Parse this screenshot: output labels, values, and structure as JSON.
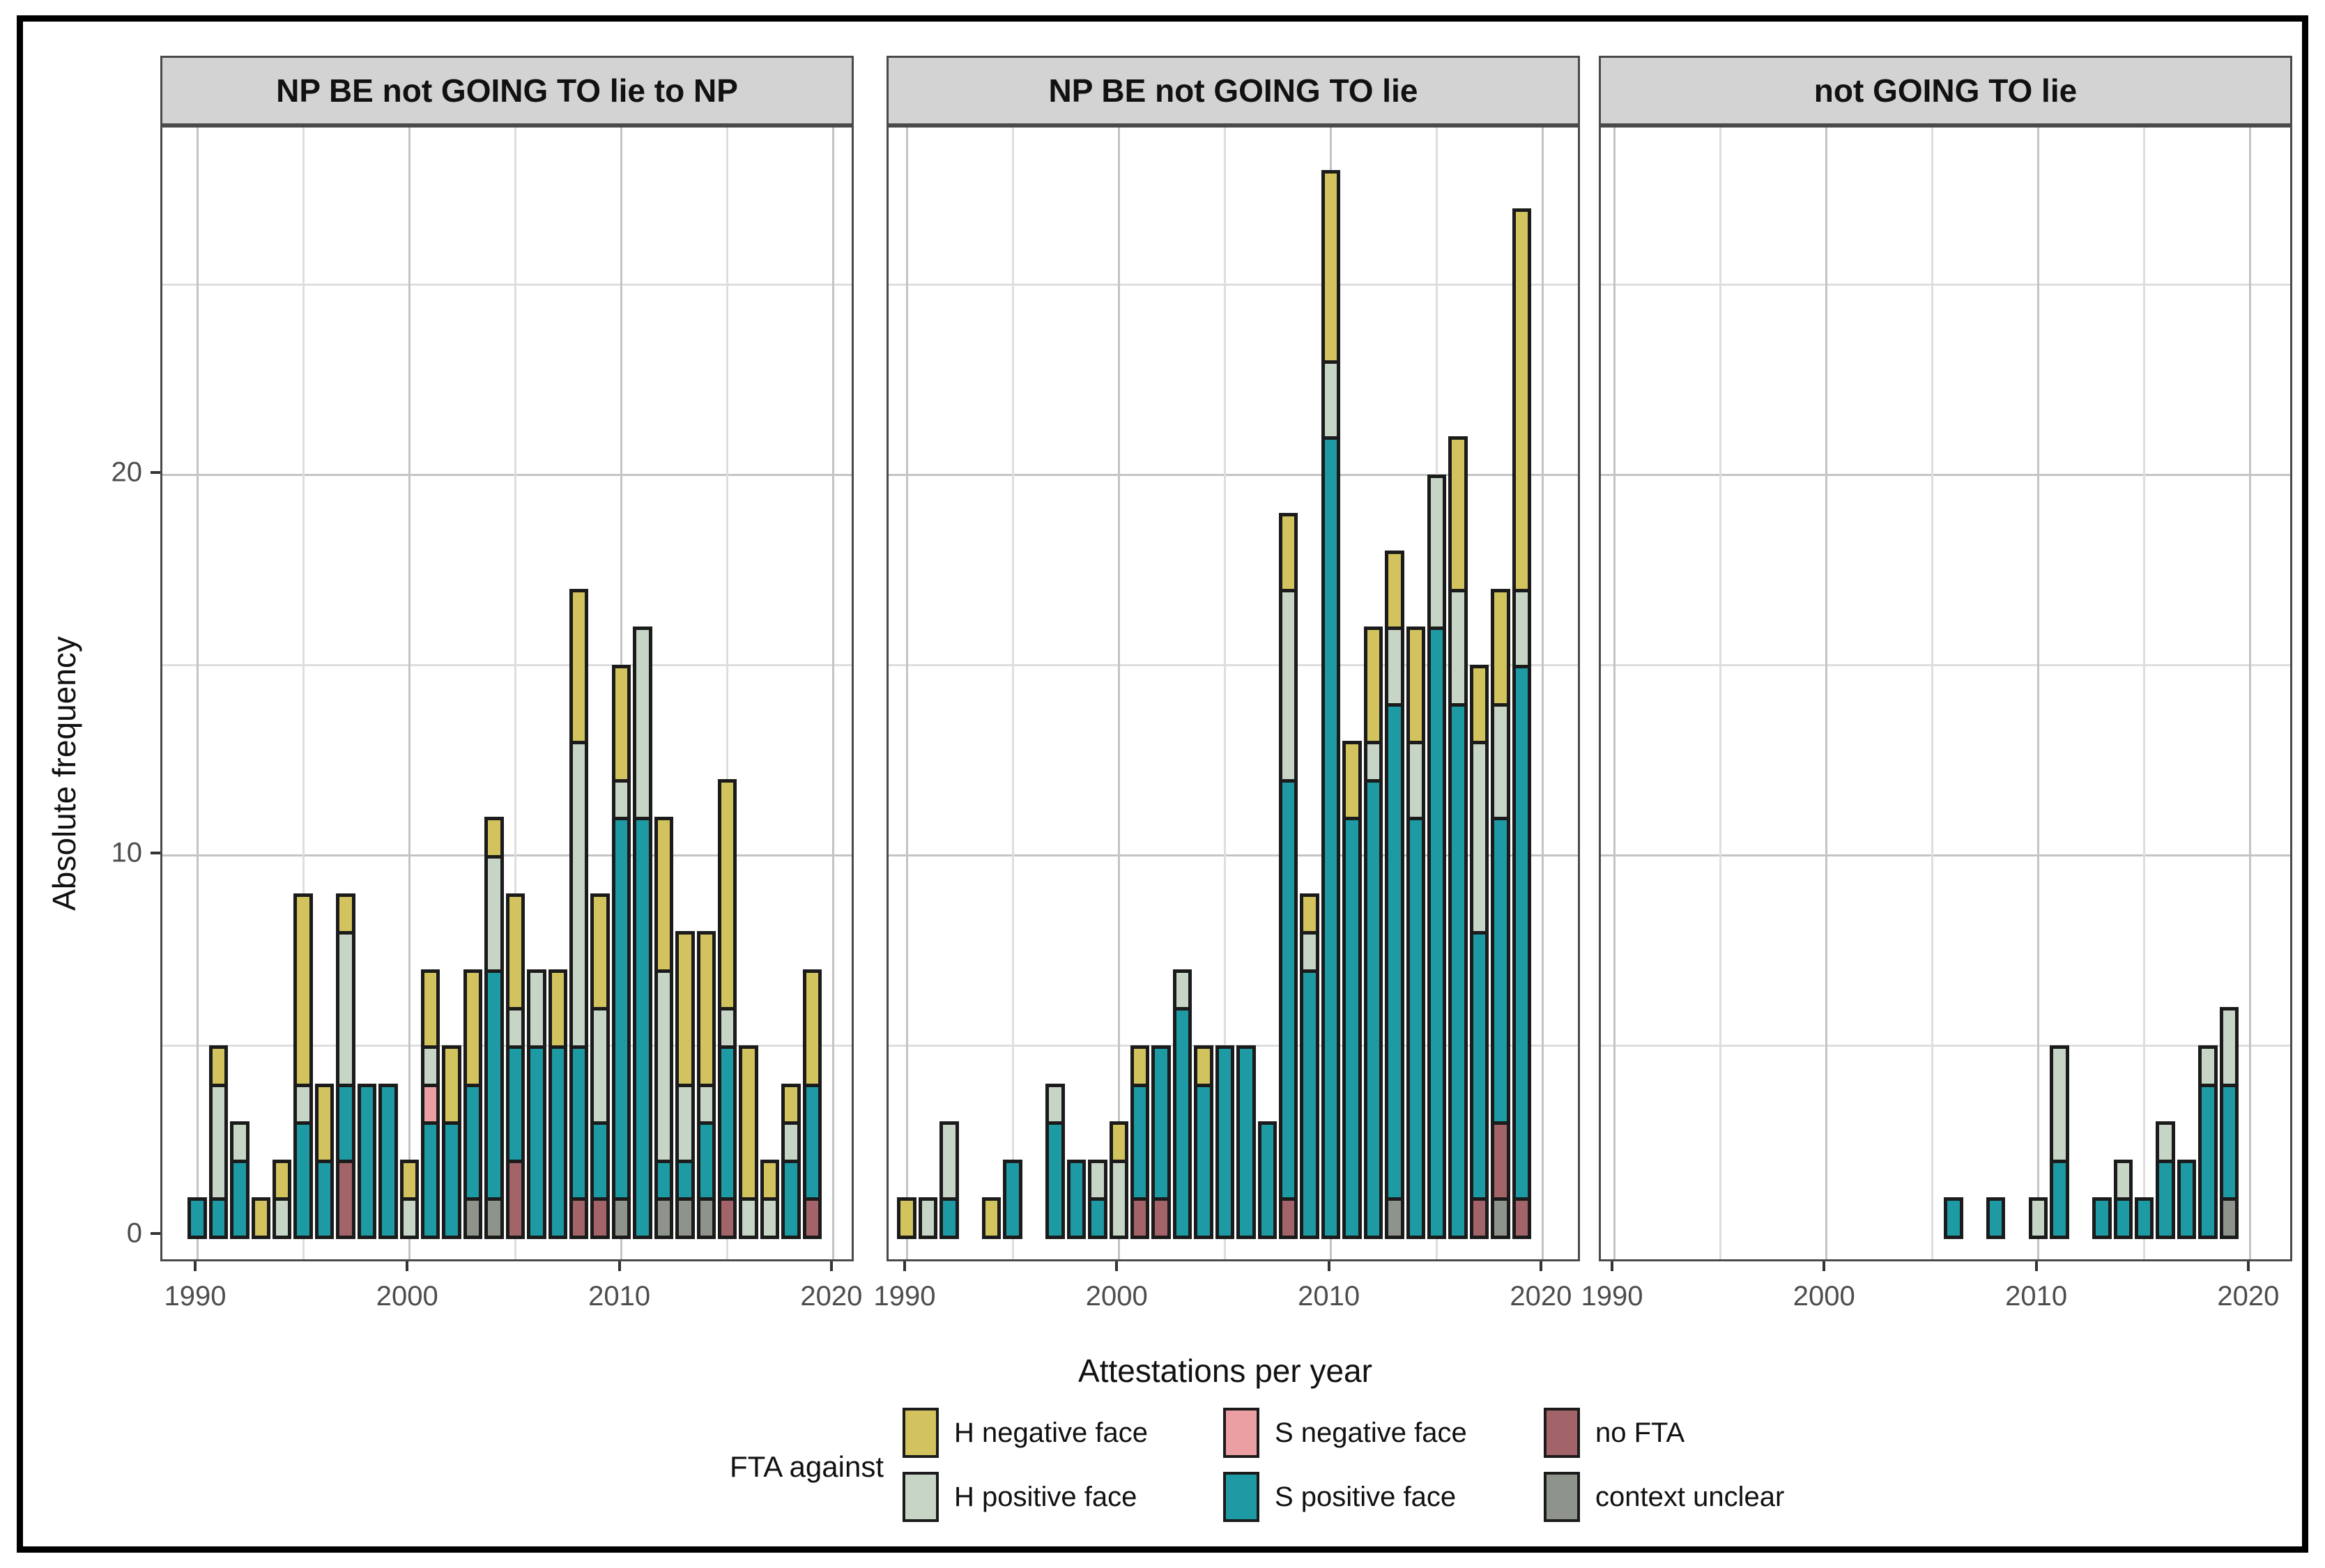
{
  "figure": {
    "ylabel": "Absolute frequency",
    "xlabel": "Attestations per year",
    "legend_title": "FTA against"
  },
  "chart_data": {
    "type": "bar",
    "subtype": "stacked-faceted-histogram",
    "xlabel": "Attestations per year",
    "ylabel": "Absolute frequency",
    "x_ticks": [
      1990,
      2000,
      2010,
      2020
    ],
    "x_minor": [
      1995,
      2005,
      2015
    ],
    "y_ticks": [
      0,
      10,
      20
    ],
    "y_minor": [
      5,
      15,
      25
    ],
    "ylim": [
      0,
      29.1
    ],
    "grid": true,
    "legend_position": "bottom",
    "stack_order_bottom_up": [
      "context_unclear",
      "no_FTA",
      "S_positive",
      "S_negative",
      "H_positive",
      "H_negative"
    ],
    "legend": {
      "title": "FTA against",
      "entries": [
        {
          "key": "H_negative",
          "label": "H negative face",
          "color": "#d2c35e"
        },
        {
          "key": "S_negative",
          "label": "S negative face",
          "color": "#ec9fa3"
        },
        {
          "key": "no_FTA",
          "label": "no FTA",
          "color": "#a26468"
        },
        {
          "key": "H_positive",
          "label": "H positive face",
          "color": "#c7d5c6"
        },
        {
          "key": "S_positive",
          "label": "S positive face",
          "color": "#1d9aa3"
        },
        {
          "key": "context_unclear",
          "label": "context unclear",
          "color": "#8e948b"
        }
      ]
    },
    "facets": [
      {
        "title": "NP BE not GOING TO lie to NP",
        "bars": {
          "1990": {
            "S_positive": 1
          },
          "1991": {
            "S_positive": 1,
            "H_positive": 3,
            "H_negative": 1
          },
          "1992": {
            "S_positive": 2,
            "H_positive": 1
          },
          "1993": {
            "H_negative": 1
          },
          "1994": {
            "H_positive": 1,
            "H_negative": 1
          },
          "1995": {
            "S_positive": 3,
            "H_positive": 1,
            "H_negative": 5
          },
          "1996": {
            "S_positive": 2,
            "H_negative": 2
          },
          "1997": {
            "no_FTA": 2,
            "S_positive": 2,
            "H_positive": 4,
            "H_negative": 1
          },
          "1998": {
            "S_positive": 4
          },
          "1999": {
            "S_positive": 4
          },
          "2000": {
            "H_positive": 1,
            "H_negative": 1
          },
          "2001": {
            "S_positive": 3,
            "S_negative": 1,
            "H_positive": 1,
            "H_negative": 2
          },
          "2002": {
            "S_positive": 3,
            "H_negative": 2
          },
          "2003": {
            "context_unclear": 1,
            "S_positive": 3,
            "H_negative": 3
          },
          "2004": {
            "context_unclear": 1,
            "S_positive": 6,
            "H_positive": 3,
            "H_negative": 1
          },
          "2005": {
            "no_FTA": 2,
            "S_positive": 3,
            "H_positive": 1,
            "H_negative": 3
          },
          "2006": {
            "S_positive": 5,
            "H_positive": 2
          },
          "2007": {
            "S_positive": 5,
            "H_negative": 2
          },
          "2008": {
            "no_FTA": 1,
            "S_positive": 4,
            "H_positive": 8,
            "H_negative": 4
          },
          "2009": {
            "no_FTA": 1,
            "S_positive": 2,
            "H_positive": 3,
            "H_negative": 3
          },
          "2010": {
            "context_unclear": 1,
            "S_positive": 10,
            "H_positive": 1,
            "H_negative": 3
          },
          "2011": {
            "S_positive": 11,
            "H_positive": 5
          },
          "2012": {
            "context_unclear": 1,
            "S_positive": 1,
            "H_positive": 5,
            "H_negative": 4
          },
          "2013": {
            "context_unclear": 1,
            "S_positive": 1,
            "H_positive": 2,
            "H_negative": 4
          },
          "2014": {
            "context_unclear": 1,
            "S_positive": 2,
            "H_positive": 1,
            "H_negative": 4
          },
          "2015": {
            "no_FTA": 1,
            "S_positive": 4,
            "H_positive": 1,
            "H_negative": 6
          },
          "2016": {
            "H_positive": 1,
            "H_negative": 4
          },
          "2017": {
            "H_positive": 1,
            "H_negative": 1
          },
          "2018": {
            "S_positive": 2,
            "H_positive": 1,
            "H_negative": 1
          },
          "2019": {
            "no_FTA": 1,
            "S_positive": 3,
            "H_negative": 3
          }
        }
      },
      {
        "title": "NP BE not GOING TO lie",
        "bars": {
          "1990": {
            "H_negative": 1
          },
          "1991": {
            "H_positive": 1
          },
          "1992": {
            "S_positive": 1,
            "H_positive": 2
          },
          "1994": {
            "H_negative": 1
          },
          "1995": {
            "S_positive": 2
          },
          "1997": {
            "S_positive": 3,
            "H_positive": 1
          },
          "1998": {
            "S_positive": 2
          },
          "1999": {
            "S_positive": 1,
            "H_positive": 1
          },
          "2000": {
            "H_positive": 2,
            "H_negative": 1
          },
          "2001": {
            "no_FTA": 1,
            "S_positive": 3,
            "H_negative": 1
          },
          "2002": {
            "no_FTA": 1,
            "S_positive": 4
          },
          "2003": {
            "S_positive": 6,
            "H_positive": 1
          },
          "2004": {
            "S_positive": 4,
            "H_negative": 1
          },
          "2005": {
            "S_positive": 5
          },
          "2006": {
            "S_positive": 5
          },
          "2007": {
            "S_positive": 3
          },
          "2008": {
            "no_FTA": 1,
            "S_positive": 11,
            "H_positive": 5,
            "H_negative": 2
          },
          "2009": {
            "S_positive": 7,
            "H_positive": 1,
            "H_negative": 1
          },
          "2010": {
            "S_positive": 21,
            "H_positive": 2,
            "H_negative": 5
          },
          "2011": {
            "S_positive": 11,
            "H_negative": 2
          },
          "2012": {
            "S_positive": 12,
            "H_positive": 1,
            "H_negative": 3
          },
          "2013": {
            "context_unclear": 1,
            "S_positive": 13,
            "H_positive": 2,
            "H_negative": 2
          },
          "2014": {
            "S_positive": 11,
            "H_positive": 2,
            "H_negative": 3
          },
          "2015": {
            "S_positive": 16,
            "H_positive": 4
          },
          "2016": {
            "S_positive": 14,
            "H_positive": 3,
            "H_negative": 4
          },
          "2017": {
            "no_FTA": 1,
            "S_positive": 7,
            "H_positive": 5,
            "H_negative": 2
          },
          "2018": {
            "context_unclear": 1,
            "no_FTA": 2,
            "S_positive": 8,
            "H_positive": 3,
            "H_negative": 3
          },
          "2019": {
            "no_FTA": 1,
            "S_positive": 14,
            "H_positive": 2,
            "H_negative": 10
          }
        }
      },
      {
        "title": "not GOING TO lie",
        "bars": {
          "2006": {
            "S_positive": 1
          },
          "2008": {
            "S_positive": 1
          },
          "2010": {
            "H_positive": 1
          },
          "2011": {
            "S_positive": 2,
            "H_positive": 3
          },
          "2013": {
            "S_positive": 1
          },
          "2014": {
            "S_positive": 1,
            "H_positive": 1
          },
          "2015": {
            "S_positive": 1
          },
          "2016": {
            "S_positive": 2,
            "H_positive": 1
          },
          "2017": {
            "S_positive": 2
          },
          "2018": {
            "S_positive": 4,
            "H_positive": 1
          },
          "2019": {
            "context_unclear": 1,
            "S_positive": 3,
            "H_positive": 2
          }
        }
      }
    ]
  }
}
